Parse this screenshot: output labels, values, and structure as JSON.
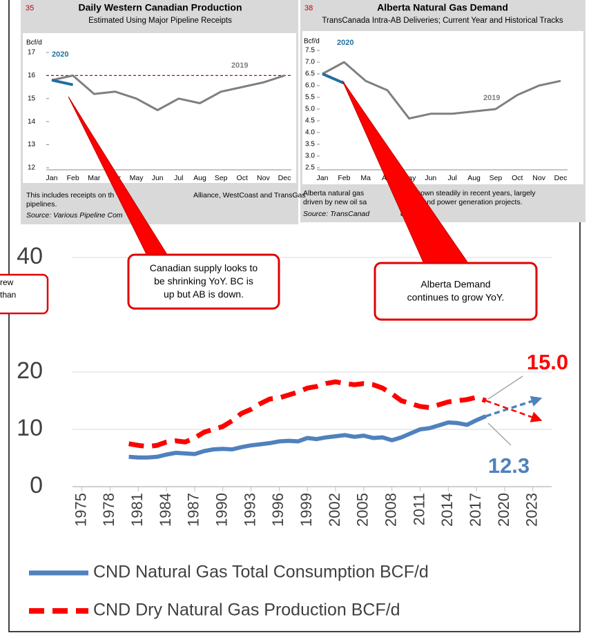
{
  "chart_data": [
    {
      "type": "line",
      "x": [
        1980,
        1981,
        1982,
        1983,
        1984,
        1985,
        1986,
        1987,
        1988,
        1989,
        1990,
        1991,
        1992,
        1993,
        1994,
        1995,
        1996,
        1997,
        1998,
        1999,
        2000,
        2001,
        2002,
        2003,
        2004,
        2005,
        2006,
        2007,
        2008,
        2009,
        2010,
        2011,
        2012,
        2013,
        2014,
        2015,
        2016,
        2017,
        2018
      ],
      "series": [
        {
          "name": "CND Natural Gas Total Consumption BCF/d",
          "color": "#4f81bd",
          "dash": false,
          "values": [
            5.2,
            5.1,
            5.1,
            5.2,
            5.6,
            5.9,
            5.8,
            5.7,
            6.2,
            6.5,
            6.6,
            6.5,
            6.9,
            7.2,
            7.4,
            7.6,
            7.9,
            8.0,
            7.9,
            8.5,
            8.3,
            8.6,
            8.8,
            9.0,
            8.7,
            8.9,
            8.5,
            8.6,
            8.1,
            8.6,
            9.3,
            10.0,
            10.2,
            10.7,
            11.2,
            11.1,
            10.8,
            11.6,
            12.3
          ],
          "end_label": "12.3",
          "projection": {
            "x": [
              2018,
              2024
            ],
            "values": [
              12.3,
              15.5
            ]
          }
        },
        {
          "name": "CND Dry Natural Gas Production BCF/d",
          "color": "#ff0000",
          "dash": true,
          "values": [
            7.5,
            7.2,
            7.0,
            7.2,
            7.8,
            8.0,
            7.8,
            8.5,
            9.5,
            10.0,
            10.5,
            11.5,
            12.8,
            13.5,
            14.5,
            15.3,
            15.5,
            16.0,
            16.5,
            17.2,
            17.5,
            18.0,
            18.3,
            18.0,
            17.8,
            18.0,
            17.8,
            17.2,
            16.2,
            15.0,
            14.5,
            14.0,
            13.8,
            14.3,
            14.8,
            15.0,
            15.2,
            15.6,
            15.0
          ],
          "end_label": "15.0",
          "projection": {
            "x": [
              2018,
              2024
            ],
            "values": [
              15.0,
              11.5
            ]
          }
        }
      ],
      "xlim": [
        1974,
        2025
      ],
      "xticks": [
        1975,
        1978,
        1981,
        1984,
        1987,
        1990,
        1993,
        1996,
        1999,
        2002,
        2005,
        2008,
        2011,
        2014,
        2017,
        2020,
        2023
      ],
      "ylim": [
        0,
        80
      ],
      "yticks": [
        0,
        10,
        20,
        40
      ],
      "callouts": [
        "Canadian supply looks to be shrinking YoY. BC is up but AB is down.",
        "Alberta Demand continues to grow YoY."
      ],
      "partial_callout": [
        "rew",
        "than"
      ]
    },
    {
      "type": "line",
      "number": "35",
      "title": "Daily Western Canadian Production",
      "subtitle": "Estimated Using Major Pipeline Receipts",
      "y_unit": "Bcf/d",
      "categories": [
        "Jan",
        "Feb",
        "Mar",
        "Apr",
        "May",
        "Jun",
        "Jul",
        "Aug",
        "Sep",
        "Oct",
        "Nov",
        "Dec"
      ],
      "series": [
        {
          "name": "2019",
          "color": "#7f7f7f",
          "values": [
            15.8,
            16.0,
            15.2,
            15.3,
            15.0,
            14.5,
            15.0,
            14.8,
            15.3,
            15.5,
            15.7,
            16.0
          ]
        },
        {
          "name": "2020",
          "color": "#1f6fa0",
          "values": [
            15.8,
            15.6,
            null,
            null,
            null,
            null,
            null,
            null,
            null,
            null,
            null,
            null
          ]
        }
      ],
      "reference": 16,
      "ylim": [
        12,
        17
      ],
      "yticks": [
        12,
        13,
        14,
        15,
        16,
        17
      ],
      "notes": [
        "This includes receipts on th",
        "Alliance, WestCoast and TransGas",
        "pipelines."
      ],
      "source": "Source: Various Pipeline Com"
    },
    {
      "type": "line",
      "number": "38",
      "title": "Alberta Natural Gas Demand",
      "subtitle": "TransCanada Intra-AB Deliveries; Current Year and Historical Tracks",
      "y_unit": "Bcf/d",
      "categories": [
        "Jan",
        "Feb",
        "Ma",
        "Apr",
        "May",
        "Jun",
        "Jul",
        "Aug",
        "Sep",
        "Oct",
        "Nov",
        "Dec"
      ],
      "series": [
        {
          "name": "2019",
          "color": "#7f7f7f",
          "values": [
            6.5,
            7.0,
            6.2,
            5.8,
            4.6,
            4.8,
            4.8,
            4.9,
            5.0,
            5.6,
            6.0,
            6.2
          ]
        },
        {
          "name": "2020",
          "color": "#1f6fa0",
          "values": [
            6.5,
            6.1,
            null,
            null,
            null,
            null,
            null,
            null,
            null,
            null,
            null,
            null
          ]
        }
      ],
      "ylim": [
        2.5,
        7.5
      ],
      "yticks": [
        2.5,
        {
          "value": 3,
          "label": "3.0"
        },
        3.5,
        {
          "value": 4,
          "label": "4.0"
        },
        4.5,
        {
          "value": 5,
          "label": "5.0"
        },
        5.5,
        {
          "value": 6,
          "label": "6.0"
        },
        6.5,
        {
          "value": 7,
          "label": "7.0"
        },
        7.5
      ],
      "notes": [
        "Alberta natural gas",
        "has grown steadily in recent years, largely",
        "driven by new oil sa",
        "and and power generation projects."
      ],
      "source": "Source: TransCanad",
      "source_tail": "es"
    }
  ]
}
